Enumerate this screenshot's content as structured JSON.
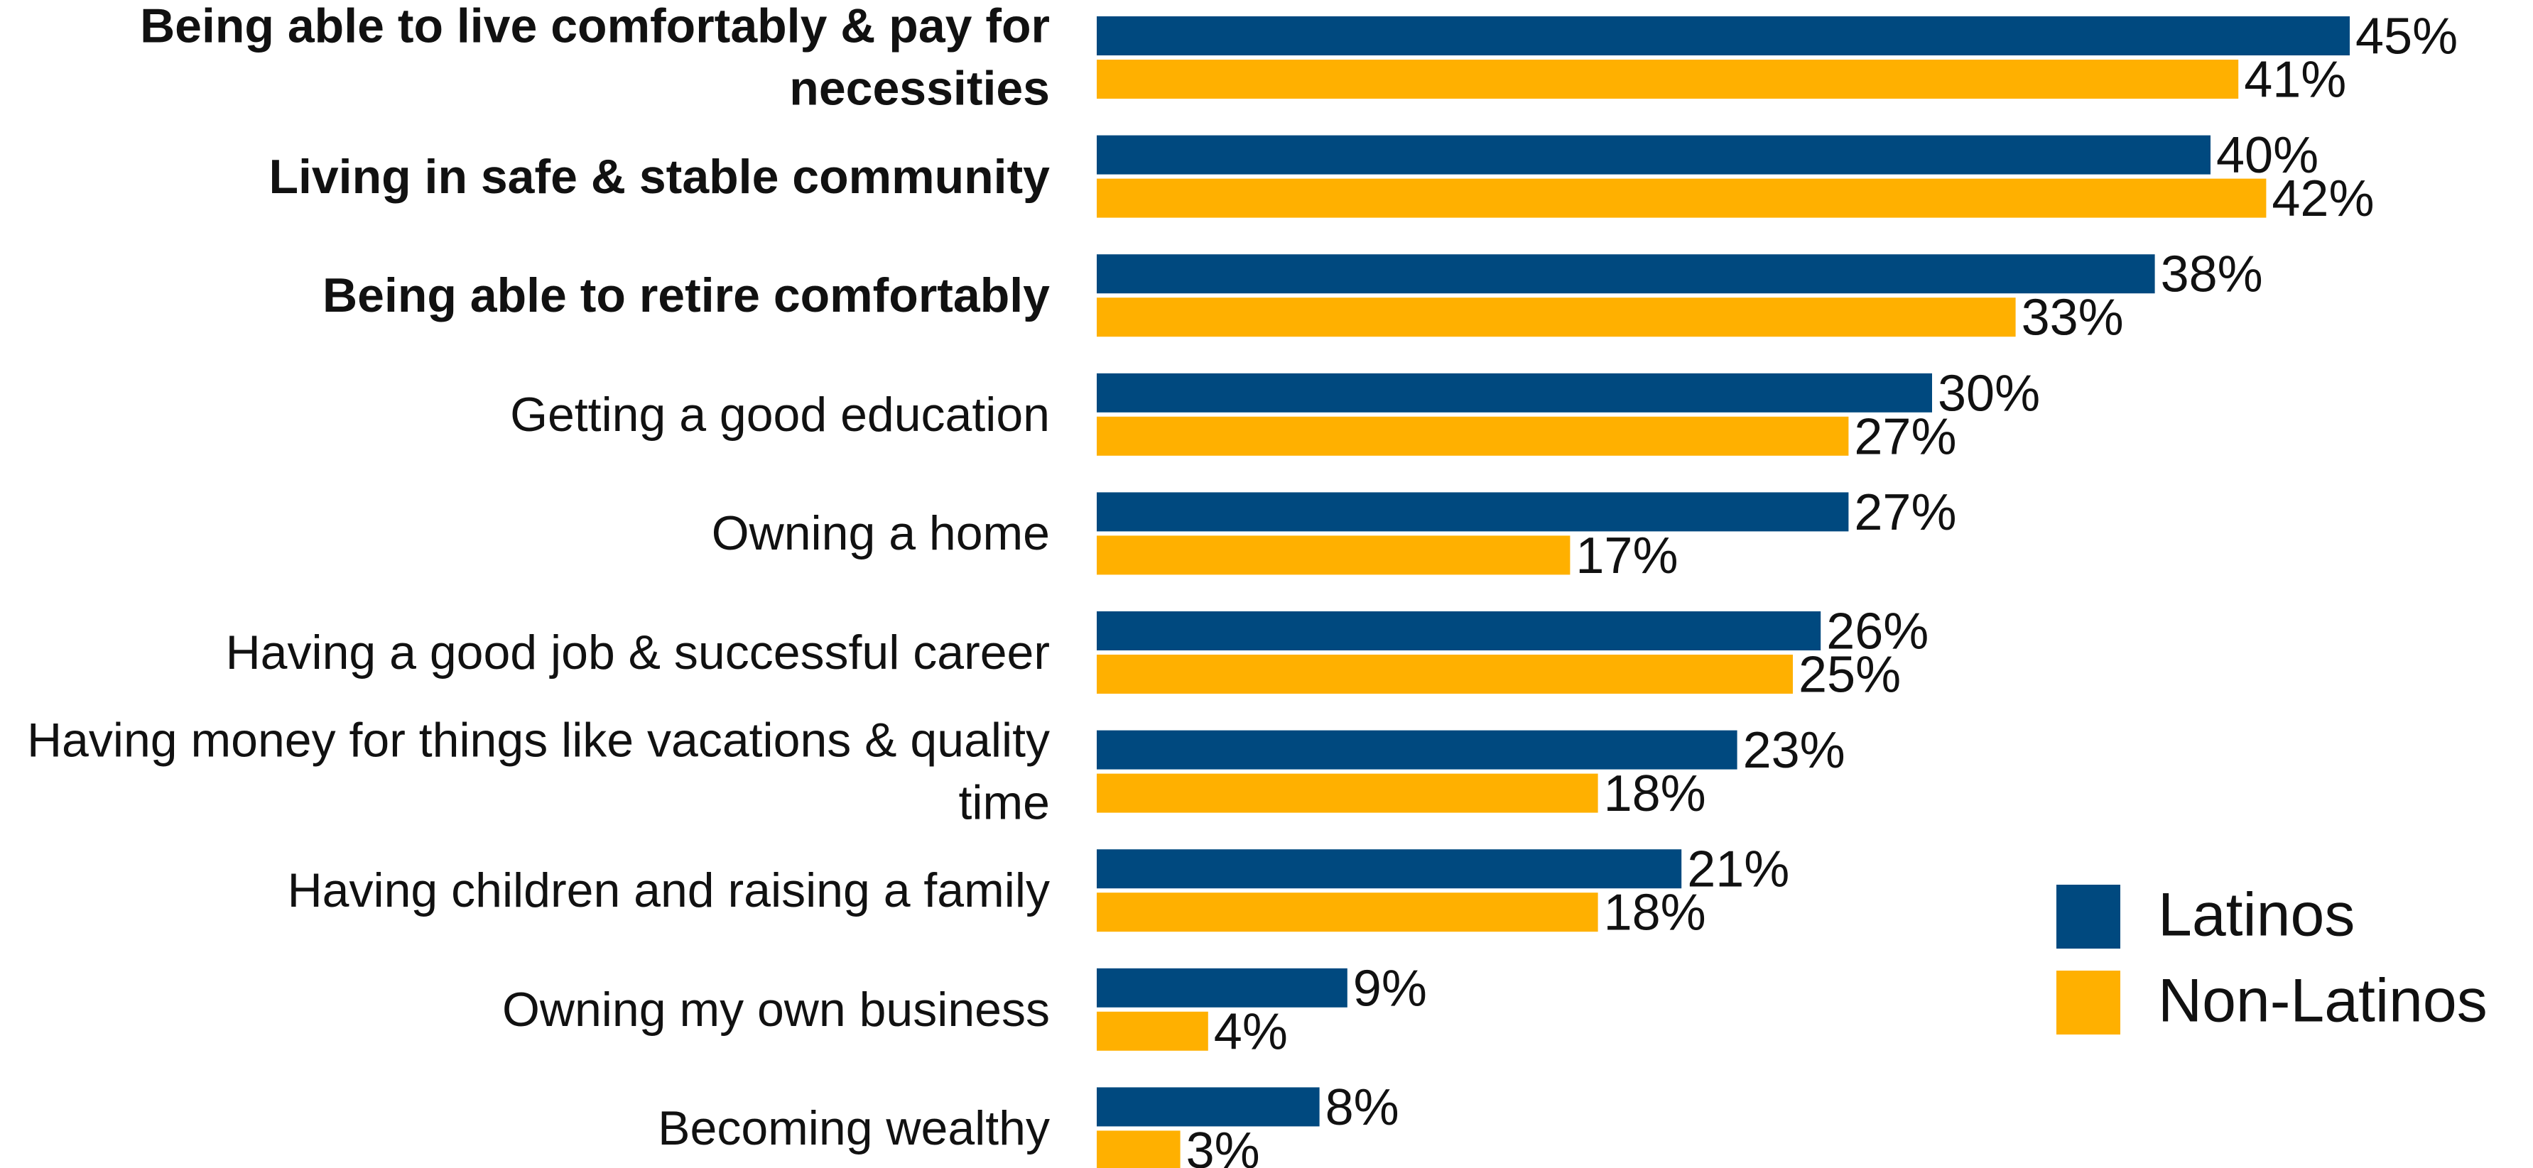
{
  "chart_data": {
    "type": "bar",
    "orientation": "horizontal",
    "categories": [
      "Being able to live comfortably & pay for necessities",
      "Living in safe & stable community",
      "Being able to retire comfortably",
      "Getting a good education",
      "Owning a home",
      "Having a good job & successful career",
      "Having money for things like vacations & quality time",
      "Having children and raising a family",
      "Owning my own business",
      "Becoming wealthy"
    ],
    "bold_categories": [
      true,
      true,
      true,
      false,
      false,
      false,
      false,
      false,
      false,
      false
    ],
    "series": [
      {
        "name": "Latinos",
        "color": "#00497f",
        "values": [
          45,
          40,
          38,
          30,
          27,
          26,
          23,
          21,
          9,
          8
        ],
        "value_labels": [
          "45%",
          "40%",
          "38%",
          "30%",
          "27%",
          "26%",
          "23%",
          "21%",
          "9%",
          "8%"
        ]
      },
      {
        "name": "Non-Latinos",
        "color": "#ffb000",
        "values": [
          41,
          42,
          33,
          27,
          17,
          25,
          18,
          18,
          4,
          3
        ],
        "value_labels": [
          "41%",
          "42%",
          "33%",
          "27%",
          "17%",
          "25%",
          "18%",
          "18%",
          "4%",
          "3%"
        ]
      }
    ],
    "legend": "right"
  }
}
